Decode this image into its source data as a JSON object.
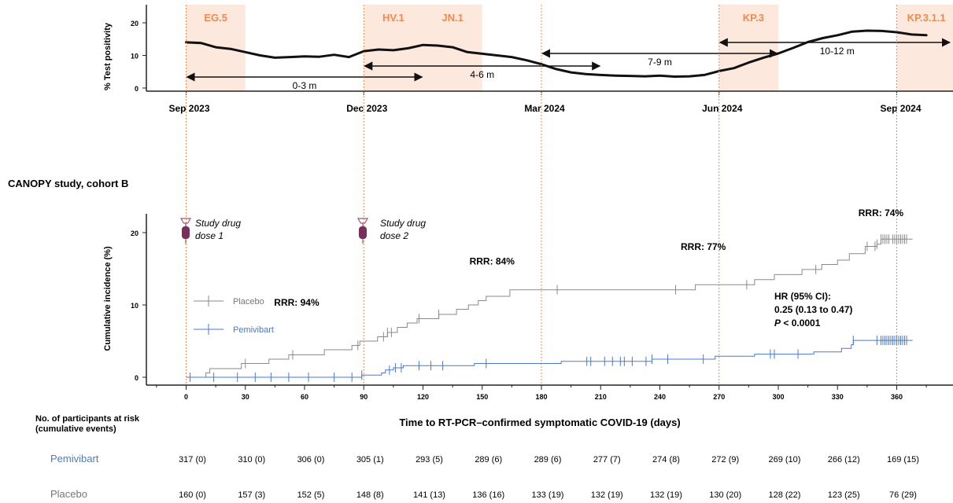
{
  "chart_data": [
    {
      "type": "line",
      "ylabel": "% Test positivity",
      "ylim": [
        0,
        25
      ],
      "yticks": [
        "0",
        "10",
        "20"
      ],
      "x_tick_labels": [
        "Sep 2023",
        "Dec 2023",
        "Mar 2024",
        "Jun 2024",
        "Sep 2024"
      ],
      "variants": [
        {
          "name": "EG.5",
          "start": 0,
          "end": 1
        },
        {
          "name": "HV.1",
          "start": 3,
          "end": 4
        },
        {
          "name": "JN.1",
          "start": 4,
          "end": 5
        },
        {
          "name": "KP.3",
          "start": 9,
          "end": 10
        },
        {
          "name": "KP.3.1.1",
          "start": 12,
          "end": 13
        }
      ],
      "windows": [
        {
          "label": "0-3 m",
          "from": 0,
          "to": 4
        },
        {
          "label": "4-6 m",
          "from": 3,
          "to": 7
        },
        {
          "label": "7-9 m",
          "from": 6,
          "to": 10
        },
        {
          "label": "10-12 m",
          "from": 9,
          "to": 13
        }
      ],
      "series": [
        {
          "x": [
            0,
            0.25,
            0.5,
            0.75,
            1,
            1.25,
            1.5,
            1.75,
            2,
            2.25,
            2.5,
            2.75,
            3,
            3.25,
            3.5,
            3.75,
            4,
            4.25,
            4.5,
            4.75,
            5,
            5.25,
            5.5,
            5.75,
            6,
            6.25,
            6.5,
            6.75,
            7,
            7.25,
            7.5,
            7.75,
            8,
            8.25,
            8.5,
            8.75,
            9,
            9.25,
            9.5,
            9.75,
            10,
            10.25,
            10.5,
            10.75,
            11,
            11.25,
            11.5,
            11.75,
            12,
            12.25,
            12.5
          ],
          "values": [
            14,
            13.8,
            12.5,
            12,
            11,
            10,
            9.3,
            9.5,
            9.7,
            9.6,
            10.2,
            9.5,
            11.3,
            11.8,
            11.6,
            12.2,
            13.2,
            13,
            12.5,
            11,
            10.5,
            10,
            9.5,
            8.5,
            7.3,
            5.8,
            4.8,
            4.3,
            4,
            3.8,
            3.7,
            3.6,
            3.8,
            3.5,
            3.6,
            4,
            5.2,
            6.1,
            7.8,
            9.3,
            10.6,
            12.3,
            14.1,
            15.3,
            16.2,
            17.3,
            17.6,
            17.5,
            17.1,
            16.4,
            16.2
          ]
        }
      ]
    },
    {
      "type": "line",
      "title": "CANOPY study, cohort B",
      "xlabel": "Time to RT-PCR–confirmed symptomatic COVID-19 (days)",
      "ylabel": "Cumulative incidence (%)",
      "xlim": [
        -10,
        385
      ],
      "ylim": [
        -1,
        23
      ],
      "xticks": [
        0,
        30,
        60,
        90,
        120,
        150,
        180,
        210,
        240,
        270,
        300,
        330,
        360
      ],
      "yticks": [
        0,
        10,
        20
      ],
      "series": [
        {
          "name": "Placebo",
          "color": "#8a8a8a",
          "steps": [
            [
              0,
              0
            ],
            [
              10,
              0.6
            ],
            [
              12,
              1.2
            ],
            [
              28,
              1.9
            ],
            [
              42,
              2.5
            ],
            [
              52,
              3.1
            ],
            [
              70,
              3.8
            ],
            [
              84,
              4.4
            ],
            [
              88,
              5
            ],
            [
              97,
              5.6
            ],
            [
              102,
              6.2
            ],
            [
              107,
              6.9
            ],
            [
              112,
              7.5
            ],
            [
              117,
              8.1
            ],
            [
              128,
              8.7
            ],
            [
              137,
              9.4
            ],
            [
              143,
              10
            ],
            [
              148,
              10.6
            ],
            [
              152,
              11.2
            ],
            [
              164,
              12.1
            ],
            [
              258,
              12.8
            ],
            [
              288,
              13.5
            ],
            [
              298,
              14.2
            ],
            [
              312,
              14.9
            ],
            [
              322,
              15.6
            ],
            [
              330,
              16.2
            ],
            [
              336,
              17.1
            ],
            [
              344,
              18.1
            ],
            [
              350,
              18.4
            ],
            [
              352,
              19.1
            ],
            [
              368,
              19.1
            ]
          ],
          "censor_x": [
            30,
            54,
            87,
            100,
            102,
            104,
            118,
            128,
            188,
            248,
            284,
            319,
            345,
            349,
            350,
            352,
            353,
            354,
            355,
            356,
            358,
            359,
            360,
            361,
            362,
            363,
            364,
            365
          ],
          "at_risk": [
            "160 (0)",
            "157 (3)",
            "152 (5)",
            "148 (8)",
            "141 (13)",
            "136 (16)",
            "133 (19)",
            "132 (19)",
            "132 (19)",
            "130 (20)",
            "128 (22)",
            "123 (25)",
            "76 (29)"
          ]
        },
        {
          "name": "Pemivibart",
          "color": "#4a78d4",
          "steps": [
            [
              0,
              0
            ],
            [
              89,
              0.3
            ],
            [
              99,
              0.6
            ],
            [
              101,
              1
            ],
            [
              105,
              1.3
            ],
            [
              110,
              1.6
            ],
            [
              146,
              1.9
            ],
            [
              190,
              2.2
            ],
            [
              236,
              2.5
            ],
            [
              268,
              2.9
            ],
            [
              288,
              3.2
            ],
            [
              318,
              3.5
            ],
            [
              332,
              4
            ],
            [
              337,
              4.5
            ],
            [
              338,
              5.1
            ],
            [
              368,
              5.1
            ]
          ],
          "censor_x": [
            2,
            14,
            26,
            35,
            43,
            52,
            62,
            75,
            84,
            89,
            103,
            106,
            109,
            118,
            124,
            130,
            152,
            203,
            205,
            212,
            216,
            220,
            222,
            226,
            233,
            236,
            244,
            262,
            296,
            298,
            310,
            338,
            350,
            352,
            353,
            354,
            355,
            356,
            357,
            358,
            359,
            360,
            361,
            362,
            363,
            364,
            365
          ],
          "at_risk": [
            "317 (0)",
            "310 (0)",
            "306 (0)",
            "305 (1)",
            "293 (5)",
            "289 (6)",
            "289 (6)",
            "277 (7)",
            "274 (8)",
            "272 (9)",
            "269 (10)",
            "266 (12)",
            "169 (15)"
          ]
        }
      ],
      "annotations": {
        "rrr": [
          {
            "text": "RRR: 94%",
            "x": 56,
            "y": 9.9
          },
          {
            "text": "RRR: 84%",
            "x": 155,
            "y": 15.6
          },
          {
            "text": "RRR: 77%",
            "x": 262,
            "y": 17.6
          },
          {
            "text": "RRR: 74%",
            "x": 352,
            "y": 22.3
          }
        ],
        "dose1": {
          "line1": "Study drug",
          "line2": "dose 1",
          "x": 0
        },
        "dose2": {
          "line1": "Study drug",
          "line2": "dose 2",
          "x": 90
        },
        "hr": {
          "line1": "HR (95% CI):",
          "line2": "0.25 (0.13 to 0.47)",
          "p_label": "P",
          "p_rest": " < 0.0001"
        }
      },
      "at_risk_header": [
        "No. of participants at risk",
        "(cumulative events)"
      ]
    }
  ]
}
